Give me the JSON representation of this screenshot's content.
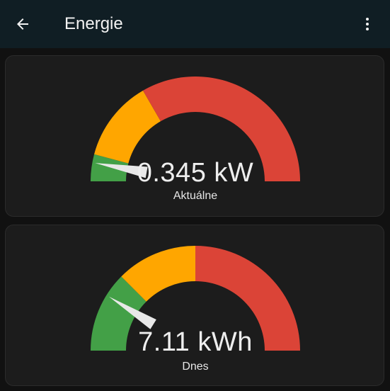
{
  "header": {
    "title": "Energie",
    "back_icon": "arrow-left-icon",
    "menu_icon": "dots-vertical-icon"
  },
  "colors": {
    "green": "#43a047",
    "yellow": "#ffa600",
    "red": "#db4437",
    "needle": "#e8e8e8"
  },
  "gauges": [
    {
      "value_text": "0.345 kW",
      "name": "Aktuálne",
      "value": 0.345,
      "min": 0,
      "max": 6,
      "severity": {
        "green": 0,
        "yellow": 0.5,
        "red": 2
      }
    },
    {
      "value_text": "7.11 kWh",
      "name": "Dnes",
      "value": 7.11,
      "min": 0,
      "max": 40,
      "severity": {
        "green": 0,
        "yellow": 10,
        "red": 20
      }
    }
  ]
}
